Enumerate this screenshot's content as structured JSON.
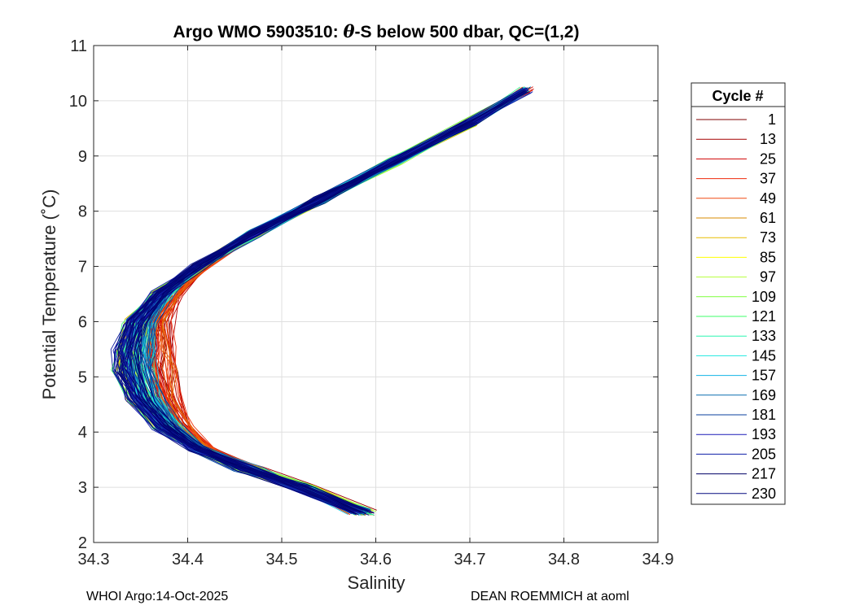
{
  "chart_data": {
    "type": "line",
    "title_parts": [
      "Argo WMO 5903510: ",
      "θ",
      "-S below 500 dbar,  QC=(1,2)"
    ],
    "xlabel": "Salinity",
    "ylabel": "Potential Temperature (˚C)",
    "xlim": [
      34.3,
      34.9
    ],
    "ylim": [
      2,
      11
    ],
    "xticks": [
      "34.3",
      "34.4",
      "34.5",
      "34.6",
      "34.7",
      "34.8",
      "34.9"
    ],
    "yticks": [
      "2",
      "3",
      "4",
      "5",
      "6",
      "7",
      "8",
      "9",
      "10",
      "11"
    ],
    "grid": true,
    "legend": {
      "title": "Cycle #",
      "position": "right",
      "entries": [
        {
          "label": "1",
          "color": "#800000"
        },
        {
          "label": "13",
          "color": "#a50000"
        },
        {
          "label": "25",
          "color": "#d00000"
        },
        {
          "label": "37",
          "color": "#ee2a0c"
        },
        {
          "label": "49",
          "color": "#f04a14"
        },
        {
          "label": "61",
          "color": "#d98b00"
        },
        {
          "label": "73",
          "color": "#e8be00"
        },
        {
          "label": "85",
          "color": "#ffff00"
        },
        {
          "label": "97",
          "color": "#b6ff3c"
        },
        {
          "label": "109",
          "color": "#7cff3a"
        },
        {
          "label": "121",
          "color": "#3cff6a"
        },
        {
          "label": "133",
          "color": "#2cf5b0"
        },
        {
          "label": "145",
          "color": "#20e8e0"
        },
        {
          "label": "157",
          "color": "#12b4e6"
        },
        {
          "label": "169",
          "color": "#0a6fb0"
        },
        {
          "label": "181",
          "color": "#0a3f9c"
        },
        {
          "label": "193",
          "color": "#1c1cb8"
        },
        {
          "label": "205",
          "color": "#0f1fa8"
        },
        {
          "label": "217",
          "color": "#000066"
        },
        {
          "label": "230",
          "color": "#050a80"
        }
      ]
    },
    "profile_shape": {
      "description_points": [
        {
          "s": 34.585,
          "t": 2.55
        },
        {
          "s": 34.52,
          "t": 3.0
        },
        {
          "s": 34.46,
          "t": 3.35
        },
        {
          "s": 34.41,
          "t": 3.7
        },
        {
          "s": 34.375,
          "t": 4.1
        },
        {
          "s": 34.35,
          "t": 4.6
        },
        {
          "s": 34.338,
          "t": 5.1
        },
        {
          "s": 34.337,
          "t": 5.5
        },
        {
          "s": 34.345,
          "t": 6.0
        },
        {
          "s": 34.37,
          "t": 6.5
        },
        {
          "s": 34.41,
          "t": 7.0
        },
        {
          "s": 34.47,
          "t": 7.6
        },
        {
          "s": 34.54,
          "t": 8.2
        },
        {
          "s": 34.62,
          "t": 8.9
        },
        {
          "s": 34.7,
          "t": 9.6
        },
        {
          "s": 34.76,
          "t": 10.2
        }
      ],
      "profile_count": 230
    }
  },
  "footer": {
    "left": "WHOI Argo:14-Oct-2025",
    "right": "DEAN ROEMMICH at aoml"
  }
}
